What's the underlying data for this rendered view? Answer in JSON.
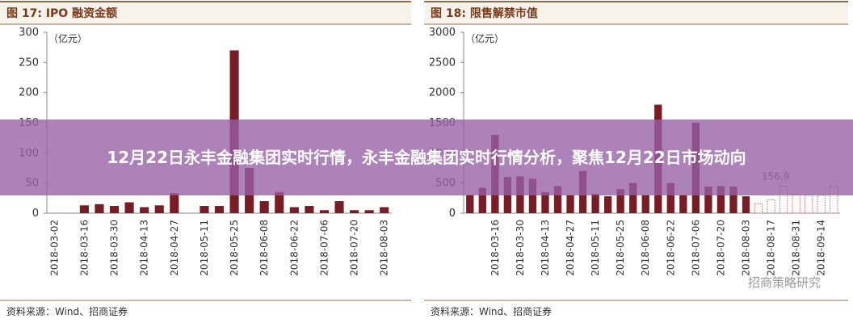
{
  "chart_data": [
    {
      "type": "bar",
      "title": "图 17: IPO 融资金额",
      "y_unit": "（亿元）",
      "source": "资料来源：Wind、招商证券",
      "categories": [
        "2018-03-02",
        null,
        "2018-03-16",
        null,
        "2018-03-30",
        null,
        "2018-04-13",
        null,
        "2018-04-27",
        null,
        "2018-05-11",
        null,
        "2018-05-25",
        null,
        "2018-06-08",
        null,
        "2018-06-22",
        null,
        "2018-07-06",
        null,
        "2018-07-20",
        null,
        "2018-08-03"
      ],
      "series": [
        {
          "color": "#7a1c24",
          "values": [
            0,
            0,
            13,
            15,
            12,
            18,
            10,
            13,
            33,
            0,
            12,
            12,
            270,
            75,
            20,
            35,
            10,
            12,
            5,
            20,
            5,
            5,
            10
          ]
        }
      ],
      "ylim": [
        0,
        300
      ],
      "yticks": [
        0,
        50,
        100,
        150,
        200,
        250,
        300
      ]
    },
    {
      "type": "bar",
      "title": "图 18: 限售解禁市值",
      "y_unit": "（亿元）",
      "source": "资料来源：Wind、招商证券",
      "watermark": "招商策略研究",
      "categories": [
        null,
        null,
        "2018-03-16",
        null,
        "2018-03-30",
        null,
        "2018-04-13",
        null,
        "2018-04-27",
        null,
        "2018-05-11",
        null,
        "2018-05-25",
        null,
        "2018-06-08",
        null,
        "2018-06-22",
        null,
        "2018-07-06",
        null,
        "2018-07-20",
        null,
        "2018-08-03",
        null,
        "2018-08-17",
        null,
        "2018-08-31",
        null,
        "2018-09-14",
        null
      ],
      "series": [
        {
          "color": "#7a1c24",
          "style": "solid",
          "values": [
            300,
            420,
            1300,
            600,
            610,
            570,
            350,
            450,
            300,
            700,
            320,
            280,
            400,
            500,
            300,
            1800,
            500,
            300,
            1500,
            440,
            450,
            440,
            280,
            null,
            null,
            null,
            null,
            null,
            null,
            null
          ]
        },
        {
          "color": "#e07a7a",
          "style": "outline",
          "values": [
            null,
            null,
            null,
            null,
            null,
            null,
            null,
            null,
            null,
            null,
            null,
            null,
            null,
            null,
            null,
            null,
            null,
            null,
            null,
            null,
            null,
            null,
            null,
            156.9,
            220,
            450,
            320,
            320,
            300,
            450
          ],
          "value_labels": [
            null,
            null,
            null,
            null,
            null,
            null,
            null,
            null,
            null,
            null,
            null,
            null,
            null,
            null,
            null,
            null,
            null,
            null,
            null,
            null,
            null,
            null,
            null,
            "156.9",
            null,
            null,
            null,
            null,
            null,
            null
          ]
        }
      ],
      "ylim": [
        0,
        3000
      ],
      "yticks": [
        0,
        500,
        1000,
        1500,
        2000,
        2500,
        3000
      ]
    }
  ],
  "banner": "12月22日永丰金融集团实时行情，永丰金融集团实时行情分析，聚焦12月22日市场动向"
}
